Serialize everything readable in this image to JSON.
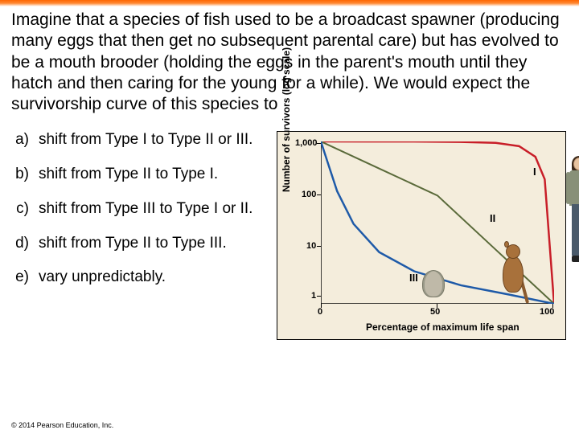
{
  "question": "Imagine that a species of fish used to be a broadcast spawner (producing many eggs that then get no subsequent parental care) but has evolved to be a mouth brooder (holding the eggs in the parent's mouth until they hatch and then caring for the young for a while). We would expect the survivorship curve of this species to",
  "options": {
    "a": {
      "letter": "a)",
      "text": "shift from Type I to Type II or III."
    },
    "b": {
      "letter": "b)",
      "text": "shift from Type II to Type I."
    },
    "c": {
      "letter": "c)",
      "text": "shift from Type III to Type I or II."
    },
    "d": {
      "letter": "d)",
      "text": "shift from Type II to Type III."
    },
    "e": {
      "letter": "e)",
      "text": "vary unpredictably."
    }
  },
  "chart": {
    "type": "line",
    "background_color": "#f4eddc",
    "ylabel": "Number of survivors (log scale)",
    "xlabel": "Percentage of maximum life span",
    "xlim": [
      0,
      100
    ],
    "ylim": [
      1,
      1000
    ],
    "yscale": "log",
    "yticks": {
      "1": "1",
      "10": "10",
      "100": "100",
      "1000": "1,000"
    },
    "xticks": {
      "0": "0",
      "50": "50",
      "100": "100"
    },
    "curves": {
      "I": {
        "label": "I",
        "color": "#c81e28",
        "width": 2.5,
        "points": [
          [
            0,
            1000
          ],
          [
            20,
            998
          ],
          [
            40,
            994
          ],
          [
            60,
            980
          ],
          [
            75,
            940
          ],
          [
            85,
            820
          ],
          [
            92,
            520
          ],
          [
            96,
            200
          ],
          [
            100,
            1
          ]
        ]
      },
      "II": {
        "label": "II",
        "color": "#5a6a3a",
        "width": 2,
        "points": [
          [
            0,
            1000
          ],
          [
            25,
            316
          ],
          [
            50,
            100
          ],
          [
            75,
            10
          ],
          [
            100,
            1
          ]
        ]
      },
      "III": {
        "label": "III",
        "color": "#1e5aa8",
        "width": 2.5,
        "points": [
          [
            0,
            1000
          ],
          [
            3,
            400
          ],
          [
            7,
            120
          ],
          [
            14,
            30
          ],
          [
            25,
            9
          ],
          [
            40,
            4
          ],
          [
            60,
            2.2
          ],
          [
            80,
            1.5
          ],
          [
            100,
            1
          ]
        ]
      }
    },
    "organisms": {
      "I": "human",
      "II": "prairie-dog",
      "III": "oyster"
    }
  },
  "copyright": "© 2014 Pearson Education, Inc."
}
